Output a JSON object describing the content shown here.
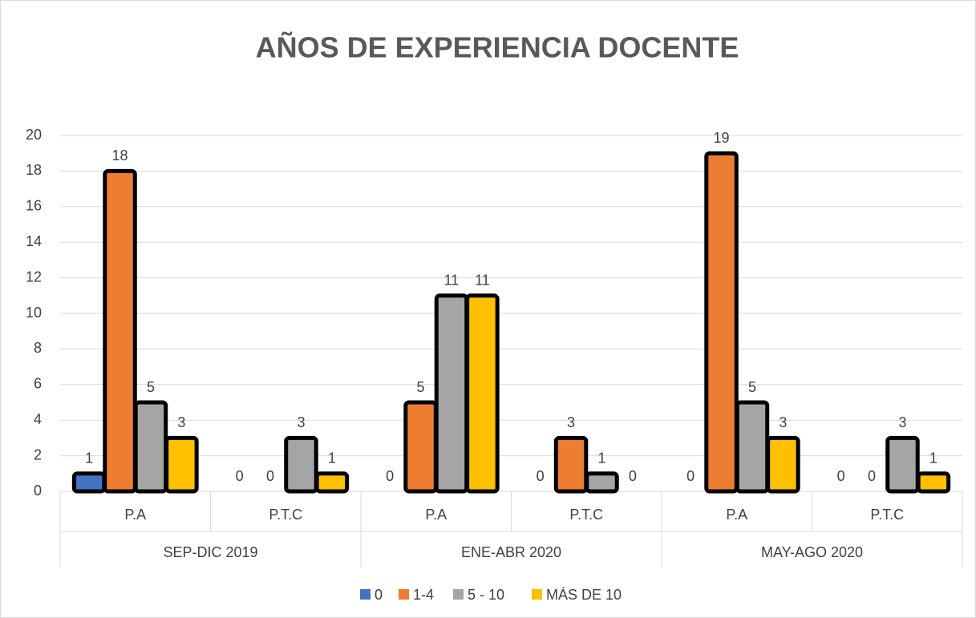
{
  "chart_data": {
    "type": "bar",
    "title": "AÑOS DE EXPERIENCIA DOCENTE",
    "categories": [
      "P.A",
      "P.T.C",
      "P.A",
      "P.T.C",
      "P.A",
      "P.T.C"
    ],
    "category_groups": [
      "SEP-DIC 2019",
      "ENE-ABR 2020",
      "MAY-AGO 2020"
    ],
    "series": [
      {
        "name": "0",
        "color": "#4472c4",
        "values": [
          1,
          0,
          0,
          0,
          0,
          0
        ]
      },
      {
        "name": "1-4",
        "color": "#ed7d31",
        "values": [
          18,
          0,
          5,
          3,
          19,
          0
        ]
      },
      {
        "name": "5 - 10",
        "color": "#a5a5a5",
        "values": [
          5,
          3,
          11,
          1,
          5,
          3
        ]
      },
      {
        "name": "MÁS DE 10",
        "color": "#ffc000",
        "values": [
          3,
          1,
          11,
          0,
          3,
          1
        ]
      }
    ],
    "ylim": [
      0,
      20
    ],
    "yticks": [
      0,
      2,
      4,
      6,
      8,
      10,
      12,
      14,
      16,
      18,
      20
    ],
    "grid": true,
    "legend": "bottom"
  }
}
